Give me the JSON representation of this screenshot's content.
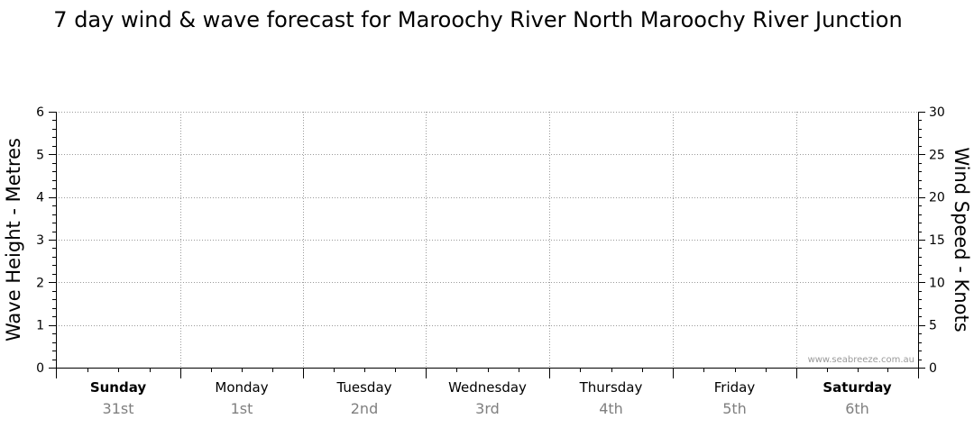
{
  "chart_data": {
    "type": "line",
    "title": "7 day wind & wave forecast for Maroochy River North Maroochy River Junction",
    "y_left": {
      "label": "Wave Height - Metres",
      "min": 0,
      "max": 6,
      "ticks": [
        "0",
        "1",
        "2",
        "3",
        "4",
        "5",
        "6"
      ]
    },
    "y_right": {
      "label": "Wind Speed - Knots",
      "min": 0,
      "max": 30,
      "ticks": [
        "0",
        "5",
        "10",
        "15",
        "20",
        "25",
        "30"
      ]
    },
    "days": [
      {
        "name": "Sunday",
        "date": "31st",
        "bold": true
      },
      {
        "name": "Monday",
        "date": "1st",
        "bold": false
      },
      {
        "name": "Tuesday",
        "date": "2nd",
        "bold": false
      },
      {
        "name": "Wednesday",
        "date": "3rd",
        "bold": false
      },
      {
        "name": "Thursday",
        "date": "4th",
        "bold": false
      },
      {
        "name": "Friday",
        "date": "5th",
        "bold": false
      },
      {
        "name": "Saturday",
        "date": "6th",
        "bold": true
      }
    ],
    "series": [],
    "grid": true,
    "watermark": "www.seabreeze.com.au"
  }
}
